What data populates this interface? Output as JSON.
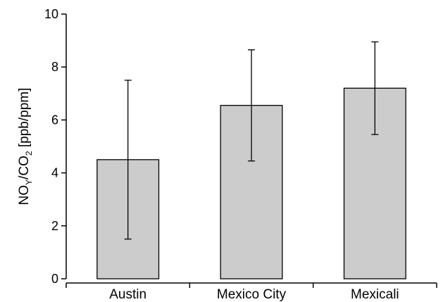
{
  "chart_data": {
    "type": "bar",
    "categories": [
      "Austin",
      "Mexico City",
      "Mexicali"
    ],
    "values": [
      4.5,
      6.55,
      7.2
    ],
    "error_bars": [
      {
        "low": 1.5,
        "high": 7.5
      },
      {
        "low": 4.45,
        "high": 8.65
      },
      {
        "low": 5.45,
        "high": 8.95
      }
    ],
    "ylabel": {
      "main": "NO",
      "sub1": "Y",
      "mid": "/CO",
      "sub2": "2",
      "tail": " [ppb/ppm]"
    },
    "ylim": [
      0,
      10
    ],
    "yticks": [
      "0",
      "2",
      "4",
      "6",
      "8",
      "10"
    ],
    "bar_fill": "#cccccc",
    "bar_stroke": "#000000",
    "grid": false
  }
}
